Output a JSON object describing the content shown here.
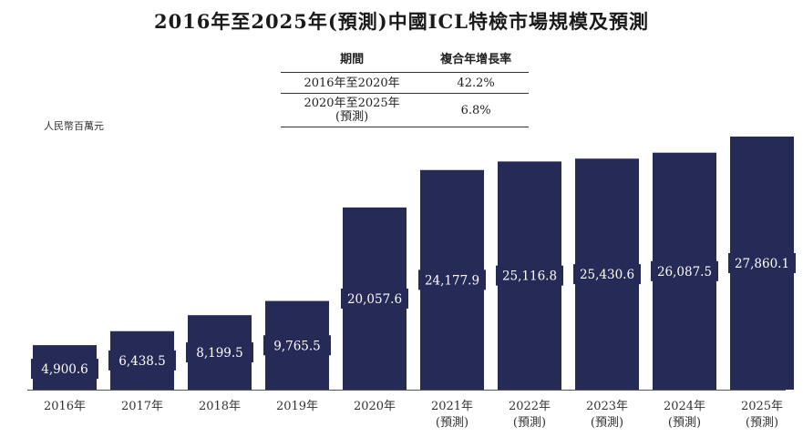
{
  "title": "2016年至2025年(預測)中國ICL特檢市場規模及預測",
  "cagr_table": {
    "headers": [
      "期間",
      "複合年增長率"
    ],
    "rows": [
      {
        "period": "2016年至2020年",
        "period_note": "",
        "rate": "42.2%"
      },
      {
        "period": "2020年至2025年",
        "period_note": "(預測)",
        "rate": "6.8%"
      }
    ]
  },
  "unit_label": "人民幣百萬元",
  "chart_data": {
    "type": "bar",
    "categories": [
      "2016年",
      "2017年",
      "2018年",
      "2019年",
      "2020年",
      "2021年",
      "2022年",
      "2023年",
      "2024年",
      "2025年"
    ],
    "category_notes": [
      "",
      "",
      "",
      "",
      "",
      "(預測)",
      "(預測)",
      "(預測)",
      "(預測)",
      "(預測)"
    ],
    "values": [
      4900.6,
      6438.5,
      8199.5,
      9765.5,
      20057.6,
      24177.9,
      25116.8,
      25430.6,
      26087.5,
      27860.1
    ],
    "value_labels": [
      "4,900.6",
      "6,438.5",
      "8,199.5",
      "9,765.5",
      "20,057.6",
      "24,177.9",
      "25,116.8",
      "25,430.6",
      "26,087.5",
      "27,860.1"
    ],
    "title": "2016年至2025年(預測)中國ICL特檢市場規模及預測",
    "ylabel": "人民幣百萬元",
    "ylim": [
      0,
      27860.1
    ],
    "grid": false,
    "bar_color": "#262a57"
  }
}
